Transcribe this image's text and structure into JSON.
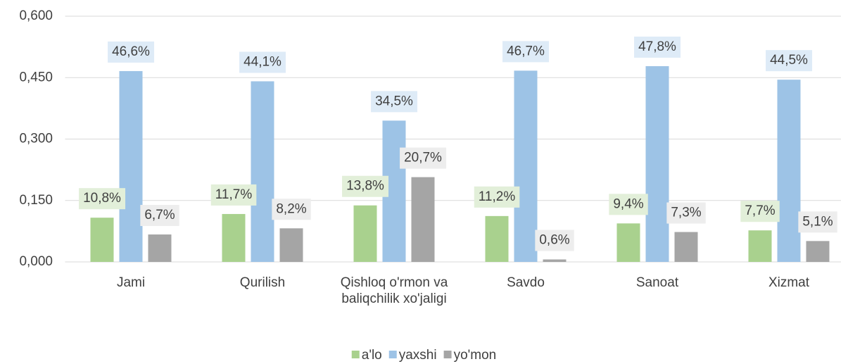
{
  "chart_data": {
    "type": "bar",
    "categories": [
      "Jami",
      "Qurilish",
      "Qishloq o'rmon va baliqchilik xo'jaligi",
      "Savdo",
      "Sanoat",
      "Xizmat"
    ],
    "series": [
      {
        "name": "a'lo",
        "color": "#a9d18e",
        "label_bg": "#e2efd9",
        "values": [
          0.108,
          0.117,
          0.138,
          0.112,
          0.094,
          0.077
        ],
        "value_labels": [
          "10,8%",
          "11,7%",
          "13,8%",
          "11,2%",
          "9,4%",
          "7,7%"
        ]
      },
      {
        "name": "yaxshi",
        "color": "#9dc3e6",
        "label_bg": "#deebf7",
        "values": [
          0.466,
          0.441,
          0.345,
          0.467,
          0.478,
          0.445
        ],
        "value_labels": [
          "46,6%",
          "44,1%",
          "34,5%",
          "46,7%",
          "47,8%",
          "44,5%"
        ]
      },
      {
        "name": "yo'mon",
        "color": "#a5a5a5",
        "label_bg": "#ededed",
        "values": [
          0.067,
          0.082,
          0.207,
          0.006,
          0.073,
          0.051
        ],
        "value_labels": [
          "6,7%",
          "8,2%",
          "20,7%",
          "0,6%",
          "7,3%",
          "5,1%"
        ]
      }
    ],
    "ylim": [
      0,
      0.6
    ],
    "yticks": [
      {
        "value": 0,
        "label": "0,000"
      },
      {
        "value": 0.15,
        "label": "0,150"
      },
      {
        "value": 0.3,
        "label": "0,300"
      },
      {
        "value": 0.45,
        "label": "0,450"
      },
      {
        "value": 0.6,
        "label": "0,600"
      }
    ],
    "grid": true,
    "legend": "bottom"
  }
}
